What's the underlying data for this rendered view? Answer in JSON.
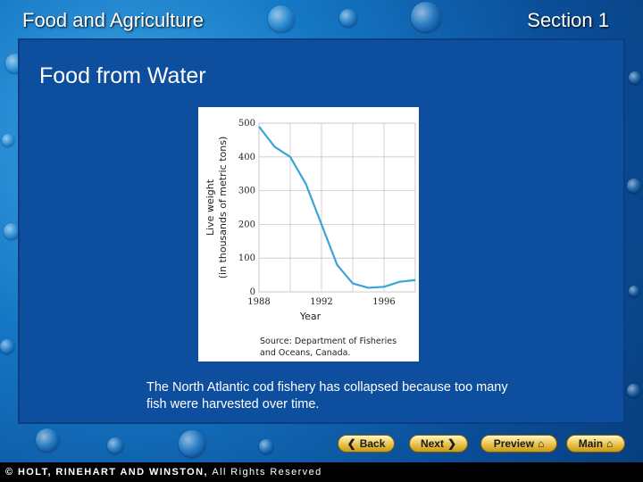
{
  "header": {
    "subject": "Food and Agriculture",
    "section": "Section 1"
  },
  "slide": {
    "title": "Food from Water",
    "caption": "The North Atlantic cod fishery has collapsed because too many fish were harvested over time."
  },
  "chart_data": {
    "type": "line",
    "title": "",
    "xlabel": "Year",
    "ylabel_line1": "Live weight",
    "ylabel_line2": "(in thousands of metric tons)",
    "x_ticks": [
      1988,
      1992,
      1996
    ],
    "y_ticks": [
      0,
      100,
      200,
      300,
      400,
      500
    ],
    "xlim": [
      1988,
      1998
    ],
    "ylim": [
      0,
      500
    ],
    "grid": true,
    "source": [
      "Source: Department of Fisheries",
      "and Oceans, Canada."
    ],
    "series": [
      {
        "x": [
          1988,
          1988.5,
          1989,
          1990,
          1991,
          1992,
          1993,
          1994,
          1995,
          1996,
          1997,
          1998
        ],
        "y": [
          490,
          460,
          430,
          400,
          320,
          200,
          80,
          25,
          12,
          15,
          30,
          35
        ]
      }
    ]
  },
  "nav": {
    "back": "Back",
    "next": "Next",
    "preview": "Preview",
    "main": "Main"
  },
  "footer": {
    "brand": "© HOLT, RINEHART AND WINSTON,",
    "rights": "All Rights Reserved"
  },
  "colors": {
    "line": "#3ba3d8",
    "panel": "#0d4e9e",
    "button": "#e9c24a"
  }
}
